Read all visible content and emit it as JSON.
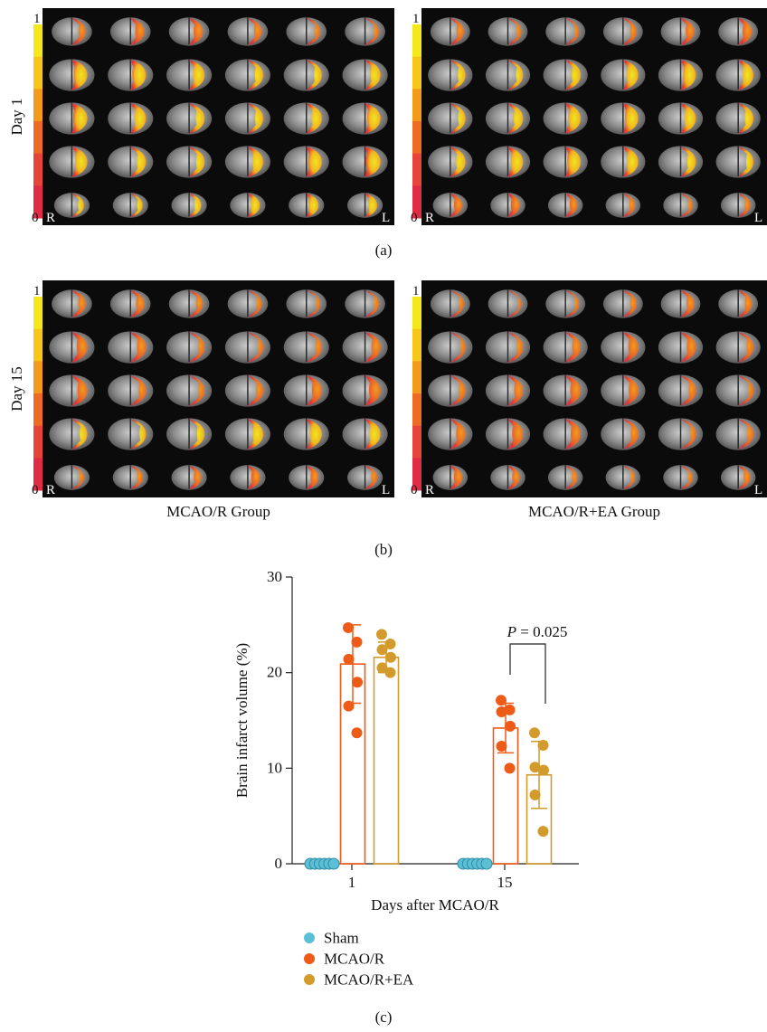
{
  "panels": {
    "a": {
      "caption": "(a)",
      "row_label": "Day 1",
      "colorbar": {
        "top": "1",
        "bottom": "0",
        "colors": [
          "#f4e81a",
          "#f6c719",
          "#f49a1a",
          "#ee6b23",
          "#e6453a",
          "#e02c45"
        ]
      },
      "images": [
        {
          "right_label": "R",
          "left_label": "L",
          "group": "MCAO/R"
        },
        {
          "right_label": "R",
          "left_label": "L",
          "group": "MCAO/R+EA"
        }
      ]
    },
    "b": {
      "caption": "(b)",
      "row_label": "Day 15",
      "colorbar": {
        "top": "1",
        "bottom": "0",
        "colors": [
          "#f4e81a",
          "#f6c719",
          "#f49a1a",
          "#ee6b23",
          "#e6453a",
          "#e02c45"
        ]
      },
      "images": [
        {
          "right_label": "R",
          "left_label": "L",
          "group_caption": "MCAO/R Group"
        },
        {
          "right_label": "R",
          "left_label": "L",
          "group_caption": "MCAO/R+EA Group"
        }
      ]
    },
    "c": {
      "caption": "(c)"
    }
  },
  "chart_data": {
    "type": "bar",
    "xlabel": "Days after MCAO/R",
    "ylabel": "Brain infarct volume (%)",
    "ylim": [
      0,
      30
    ],
    "yticks": [
      0,
      10,
      20,
      30
    ],
    "categories": [
      "1",
      "15"
    ],
    "legend_position": "bottom-left",
    "series": [
      {
        "name": "Sham",
        "color": "#5bc0d6",
        "values": [
          0,
          0
        ],
        "errors": [
          0,
          0
        ],
        "points": [
          [
            0,
            0,
            0,
            0,
            0,
            0
          ],
          [
            0,
            0,
            0,
            0,
            0,
            0
          ]
        ]
      },
      {
        "name": "MCAO/R",
        "color": "#ee5a17",
        "values": [
          20.9,
          14.2
        ],
        "errors": [
          4.1,
          2.6
        ],
        "points": [
          [
            24.7,
            23.2,
            21.4,
            19.0,
            16.5,
            13.7
          ],
          [
            17.1,
            16.1,
            15.9,
            14.4,
            12.3,
            10.0
          ]
        ]
      },
      {
        "name": "MCAO/R+EA",
        "color": "#d39b2b",
        "values": [
          21.6,
          9.3
        ],
        "errors": [
          1.6,
          3.5
        ],
        "points": [
          [
            24.0,
            23.0,
            22.4,
            21.6,
            20.5,
            20.0
          ],
          [
            13.7,
            12.4,
            10.1,
            9.8,
            7.2,
            3.4
          ]
        ]
      }
    ],
    "annotation": {
      "text_p": "P",
      "text_rest": " = 0.025",
      "category": "15",
      "between": [
        "MCAO/R",
        "MCAO/R+EA"
      ]
    }
  }
}
